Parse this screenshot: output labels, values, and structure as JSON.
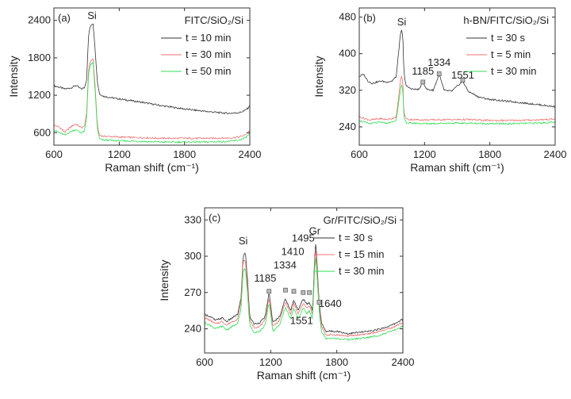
{
  "chart_data": [
    {
      "type": "line",
      "panel_label": "(a)",
      "sample_label": "FITC/SiO₂/Si",
      "xlabel": "Raman shift (cm⁻¹)",
      "ylabel": "Intensity",
      "xlim": [
        600,
        2400
      ],
      "ylim": [
        400,
        2600
      ],
      "xticks": [
        600,
        1200,
        1800,
        2400
      ],
      "yticks": [
        600,
        1200,
        1800,
        2400
      ],
      "peak_labels": [
        {
          "text": "Si",
          "x": 950,
          "y": 2420
        }
      ],
      "markers": [],
      "legend_position": "top-right",
      "series": [
        {
          "name": "t = 10 min",
          "color": "#333333",
          "x": [
            600,
            650,
            700,
            760,
            800,
            850,
            880,
            900,
            920,
            940,
            960,
            980,
            1000,
            1020,
            1060,
            1100,
            1200,
            1400,
            1600,
            1800,
            2000,
            2200,
            2300,
            2350,
            2380,
            2400
          ],
          "y": [
            1350,
            1330,
            1300,
            1320,
            1360,
            1300,
            1320,
            1450,
            2200,
            2330,
            2350,
            1900,
            1400,
            1220,
            1180,
            1170,
            1140,
            1090,
            1030,
            980,
            940,
            910,
            920,
            950,
            990,
            1030
          ]
        },
        {
          "name": "t = 30 min",
          "color": "#f07070",
          "x": [
            600,
            650,
            700,
            760,
            800,
            850,
            880,
            900,
            920,
            940,
            960,
            980,
            1000,
            1020,
            1060,
            1100,
            1200,
            1400,
            1600,
            1800,
            2000,
            2200,
            2300,
            2350,
            2380,
            2400
          ],
          "y": [
            720,
            690,
            610,
            700,
            740,
            680,
            700,
            900,
            1650,
            1760,
            1780,
            1300,
            700,
            560,
            540,
            540,
            530,
            520,
            510,
            510,
            510,
            515,
            530,
            560,
            600,
            640
          ]
        },
        {
          "name": "t = 50 min",
          "color": "#33dd55",
          "x": [
            600,
            650,
            700,
            760,
            800,
            850,
            880,
            900,
            920,
            940,
            960,
            980,
            1000,
            1020,
            1060,
            1100,
            1200,
            1400,
            1600,
            1800,
            2000,
            2200,
            2300,
            2350,
            2380,
            2400
          ],
          "y": [
            640,
            600,
            560,
            620,
            650,
            600,
            620,
            830,
            1580,
            1700,
            1720,
            1230,
            640,
            500,
            480,
            480,
            470,
            460,
            450,
            450,
            450,
            460,
            480,
            510,
            550,
            590
          ]
        }
      ]
    },
    {
      "type": "line",
      "panel_label": "(b)",
      "sample_label": "h-BN/FITC/SiO₂/Si",
      "xlabel": "Raman shift (cm⁻¹)",
      "ylabel": "Intensity",
      "xlim": [
        600,
        2400
      ],
      "ylim": [
        200,
        500
      ],
      "xticks": [
        600,
        1200,
        1800,
        2400
      ],
      "yticks": [
        240,
        320,
        400,
        480
      ],
      "peak_labels": [
        {
          "text": "Si",
          "x": 990,
          "y": 462
        },
        {
          "text": "1185",
          "x": 1185,
          "y": 354
        },
        {
          "text": "1334",
          "x": 1334,
          "y": 373
        },
        {
          "text": "1551",
          "x": 1551,
          "y": 346
        }
      ],
      "markers": [
        {
          "x": 1185,
          "y": 338
        },
        {
          "x": 1334,
          "y": 356
        },
        {
          "x": 1551,
          "y": 342
        }
      ],
      "legend_position": "top-right",
      "series": [
        {
          "name": "t = 30 s",
          "color": "#333333",
          "x": [
            600,
            640,
            680,
            720,
            760,
            800,
            850,
            900,
            940,
            960,
            980,
            990,
            1000,
            1010,
            1030,
            1060,
            1100,
            1150,
            1185,
            1220,
            1280,
            1334,
            1380,
            1450,
            1551,
            1600,
            1700,
            1800,
            2000,
            2200,
            2400
          ],
          "y": [
            350,
            355,
            340,
            335,
            338,
            340,
            338,
            340,
            350,
            400,
            445,
            450,
            440,
            360,
            330,
            325,
            322,
            322,
            338,
            322,
            320,
            355,
            320,
            318,
            340,
            318,
            305,
            300,
            295,
            290,
            284
          ]
        },
        {
          "name": "t = 5 min",
          "color": "#f07070",
          "x": [
            600,
            650,
            700,
            760,
            800,
            850,
            900,
            940,
            960,
            980,
            990,
            1000,
            1010,
            1030,
            1060,
            1100,
            1200,
            1400,
            1600,
            1800,
            2000,
            2200,
            2400
          ],
          "y": [
            262,
            258,
            255,
            257,
            258,
            256,
            258,
            262,
            300,
            345,
            350,
            340,
            270,
            258,
            256,
            256,
            255,
            256,
            256,
            254,
            254,
            255,
            257
          ]
        },
        {
          "name": "t = 30 min",
          "color": "#33dd55",
          "x": [
            600,
            650,
            700,
            760,
            800,
            850,
            900,
            940,
            960,
            980,
            990,
            1000,
            1010,
            1030,
            1060,
            1100,
            1200,
            1400,
            1600,
            1800,
            2000,
            2200,
            2400
          ],
          "y": [
            254,
            250,
            247,
            249,
            250,
            248,
            250,
            254,
            290,
            325,
            330,
            320,
            260,
            250,
            248,
            248,
            247,
            248,
            248,
            247,
            247,
            248,
            250
          ]
        }
      ]
    },
    {
      "type": "line",
      "panel_label": "(c)",
      "sample_label": "Gr/FITC/SiO₂/Si",
      "xlabel": "Raman shift (cm⁻¹)",
      "ylabel": "Intensity",
      "xlim": [
        600,
        2400
      ],
      "ylim": [
        220,
        340
      ],
      "xticks": [
        600,
        1200,
        1800,
        2400
      ],
      "yticks": [
        240,
        270,
        300,
        330
      ],
      "peak_labels": [
        {
          "text": "Si",
          "x": 950,
          "y": 310
        },
        {
          "text": "Gr",
          "x": 1600,
          "y": 318
        },
        {
          "text": "1495",
          "x": 1495,
          "y": 312
        },
        {
          "text": "1410",
          "x": 1400,
          "y": 301
        },
        {
          "text": "1334",
          "x": 1330,
          "y": 290
        },
        {
          "text": "1185",
          "x": 1150,
          "y": 279
        },
        {
          "text": "1551",
          "x": 1480,
          "y": 244
        },
        {
          "text": "1640",
          "x": 1740,
          "y": 258
        }
      ],
      "markers": [
        {
          "x": 1185,
          "y": 271
        },
        {
          "x": 1334,
          "y": 272
        },
        {
          "x": 1410,
          "y": 271
        },
        {
          "x": 1495,
          "y": 270
        },
        {
          "x": 1551,
          "y": 270
        },
        {
          "x": 1640,
          "y": 262
        }
      ],
      "legend_position": "top-right",
      "series": [
        {
          "name": "t = 30 s",
          "color": "#333333",
          "x": [
            600,
            650,
            700,
            760,
            800,
            850,
            900,
            930,
            950,
            970,
            990,
            1010,
            1050,
            1100,
            1150,
            1185,
            1220,
            1280,
            1334,
            1380,
            1410,
            1450,
            1495,
            1530,
            1551,
            1580,
            1600,
            1610,
            1620,
            1640,
            1660,
            1700,
            1800,
            1900,
            2000,
            2100,
            2200,
            2300,
            2400
          ],
          "y": [
            252,
            250,
            247,
            249,
            246,
            249,
            252,
            265,
            300,
            303,
            280,
            250,
            244,
            245,
            250,
            270,
            245,
            250,
            265,
            255,
            264,
            255,
            265,
            260,
            262,
            255,
            300,
            312,
            295,
            262,
            245,
            238,
            238,
            236,
            237,
            238,
            240,
            243,
            248
          ]
        },
        {
          "name": "t = 15 min",
          "color": "#f07070",
          "x": [
            600,
            650,
            700,
            760,
            800,
            850,
            900,
            930,
            950,
            970,
            990,
            1010,
            1050,
            1100,
            1150,
            1185,
            1220,
            1280,
            1334,
            1380,
            1410,
            1450,
            1495,
            1530,
            1551,
            1580,
            1600,
            1610,
            1620,
            1640,
            1660,
            1700,
            1800,
            1900,
            2000,
            2100,
            2200,
            2300,
            2400
          ],
          "y": [
            249,
            247,
            244,
            246,
            243,
            246,
            248,
            262,
            296,
            297,
            275,
            247,
            241,
            242,
            247,
            266,
            242,
            247,
            262,
            252,
            261,
            252,
            261,
            257,
            259,
            252,
            296,
            306,
            290,
            259,
            242,
            235,
            235,
            234,
            235,
            236,
            238,
            241,
            245
          ]
        },
        {
          "name": "t = 30 min",
          "color": "#33dd55",
          "x": [
            600,
            650,
            700,
            760,
            800,
            850,
            900,
            930,
            950,
            970,
            990,
            1010,
            1050,
            1100,
            1150,
            1185,
            1220,
            1280,
            1334,
            1380,
            1410,
            1450,
            1495,
            1530,
            1551,
            1580,
            1600,
            1610,
            1620,
            1640,
            1660,
            1700,
            1800,
            1900,
            2000,
            2100,
            2200,
            2300,
            2400
          ],
          "y": [
            245,
            243,
            240,
            242,
            239,
            242,
            244,
            256,
            288,
            290,
            268,
            243,
            237,
            238,
            243,
            262,
            238,
            243,
            258,
            248,
            257,
            248,
            257,
            253,
            255,
            248,
            290,
            300,
            284,
            255,
            238,
            232,
            232,
            231,
            232,
            233,
            235,
            238,
            242
          ]
        }
      ]
    }
  ]
}
